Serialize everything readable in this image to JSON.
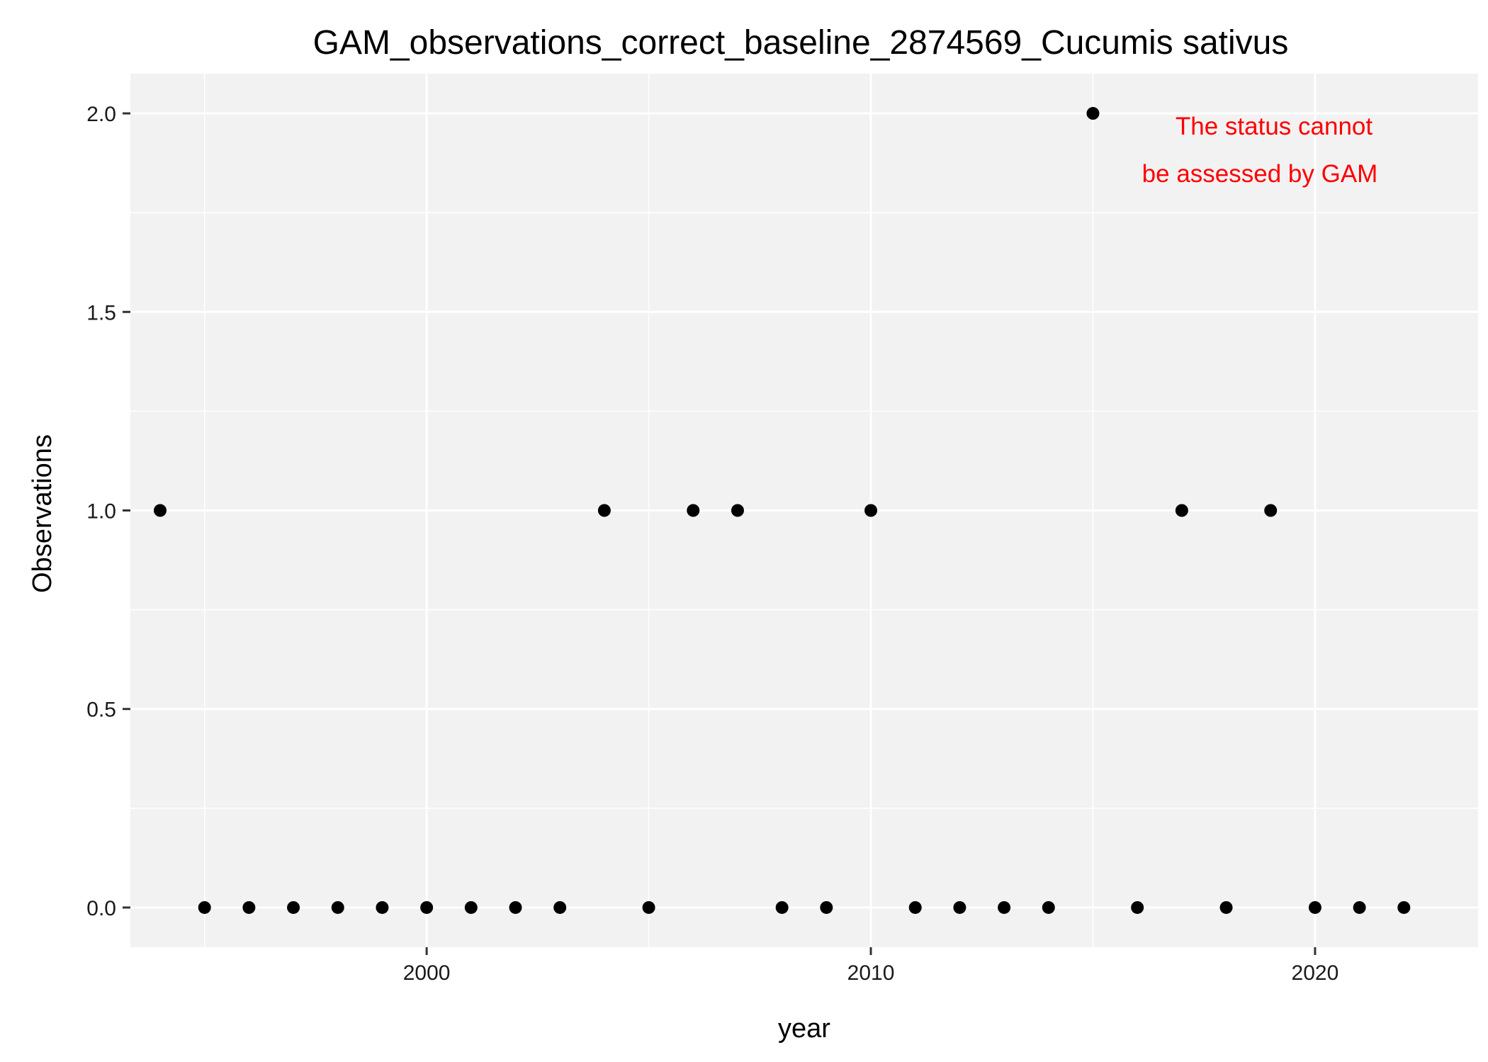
{
  "chart_data": {
    "type": "scatter",
    "title": "GAM_observations_correct_baseline_2874569_Cucumis sativus",
    "xlabel": "year",
    "ylabel": "Observations",
    "xlim": [
      1993.33,
      2023.67
    ],
    "ylim": [
      -0.1,
      2.1
    ],
    "x_ticks": [
      2000,
      2010,
      2020
    ],
    "x_tick_labels": [
      "2000",
      "2010",
      "2020"
    ],
    "x_minor_ticks": [
      1995,
      2005,
      2015
    ],
    "y_ticks": [
      0.0,
      0.5,
      1.0,
      1.5,
      2.0
    ],
    "y_tick_labels": [
      "0.0",
      "0.5",
      "1.0",
      "1.5",
      "2.0"
    ],
    "y_minor_ticks": [
      0.25,
      0.75,
      1.25,
      1.75
    ],
    "grid": true,
    "legend": "none",
    "panel_color": "#f2f2f2",
    "point_color": "#000000",
    "annotation": {
      "lines": [
        "The status cannot",
        "be assessed by GAM"
      ],
      "color": "#ff0000"
    },
    "points": [
      {
        "x": 1994,
        "y": 1
      },
      {
        "x": 1995,
        "y": 0
      },
      {
        "x": 1996,
        "y": 0
      },
      {
        "x": 1997,
        "y": 0
      },
      {
        "x": 1998,
        "y": 0
      },
      {
        "x": 1999,
        "y": 0
      },
      {
        "x": 2000,
        "y": 0
      },
      {
        "x": 2001,
        "y": 0
      },
      {
        "x": 2002,
        "y": 0
      },
      {
        "x": 2003,
        "y": 0
      },
      {
        "x": 2004,
        "y": 1
      },
      {
        "x": 2005,
        "y": 0
      },
      {
        "x": 2006,
        "y": 1
      },
      {
        "x": 2007,
        "y": 1
      },
      {
        "x": 2008,
        "y": 0
      },
      {
        "x": 2009,
        "y": 0
      },
      {
        "x": 2010,
        "y": 1
      },
      {
        "x": 2011,
        "y": 0
      },
      {
        "x": 2012,
        "y": 0
      },
      {
        "x": 2013,
        "y": 0
      },
      {
        "x": 2014,
        "y": 0
      },
      {
        "x": 2015,
        "y": 2
      },
      {
        "x": 2016,
        "y": 0
      },
      {
        "x": 2017,
        "y": 1
      },
      {
        "x": 2018,
        "y": 0
      },
      {
        "x": 2019,
        "y": 1
      },
      {
        "x": 2020,
        "y": 0
      },
      {
        "x": 2021,
        "y": 0
      },
      {
        "x": 2022,
        "y": 0
      }
    ]
  }
}
